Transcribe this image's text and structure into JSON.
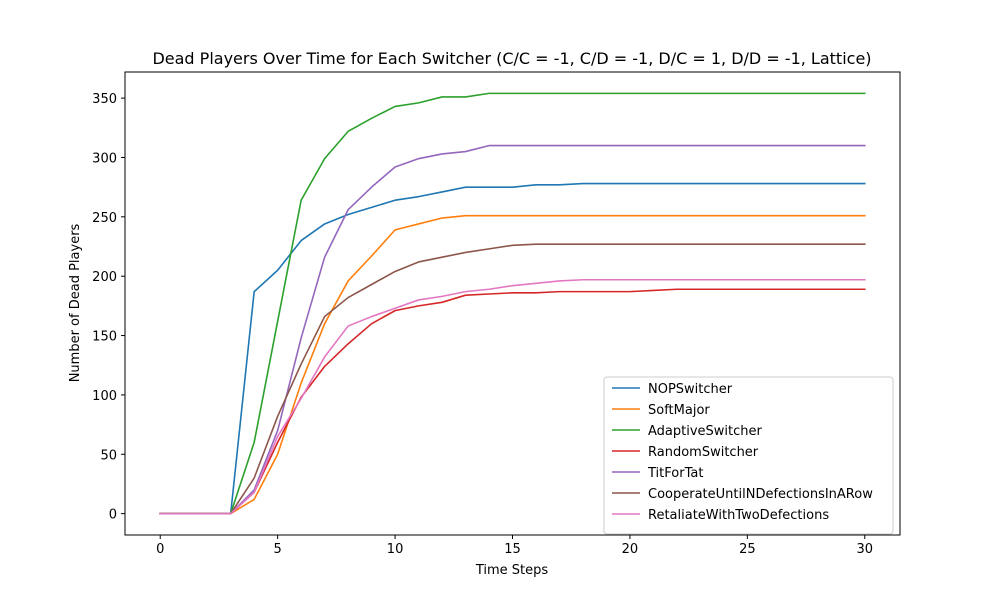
{
  "chart_data": {
    "type": "line",
    "title": "Dead Players Over Time for Each Switcher (C/C = -1, C/D = -1, D/C = 1, D/D = -1, Lattice)",
    "xlabel": "Time Steps",
    "ylabel": "Number of Dead Players",
    "xlim": [
      -1.5,
      31.5
    ],
    "ylim": [
      -18,
      372
    ],
    "xticks": [
      0,
      5,
      10,
      15,
      20,
      25,
      30
    ],
    "yticks": [
      0,
      50,
      100,
      150,
      200,
      250,
      300,
      350
    ],
    "grid": false,
    "legend_position": "lower-right",
    "x": [
      0,
      1,
      2,
      3,
      4,
      5,
      6,
      7,
      8,
      9,
      10,
      11,
      12,
      13,
      14,
      15,
      16,
      17,
      18,
      19,
      20,
      21,
      22,
      23,
      24,
      25,
      26,
      27,
      28,
      29,
      30
    ],
    "series": [
      {
        "name": "NOPSwitcher",
        "color": "#1f77b4",
        "values": [
          0,
          0,
          0,
          0,
          187,
          205,
          230,
          244,
          252,
          258,
          264,
          267,
          271,
          275,
          275,
          275,
          277,
          277,
          278,
          278,
          278,
          278,
          278,
          278,
          278,
          278,
          278,
          278,
          278,
          278,
          278
        ]
      },
      {
        "name": "SoftMajor",
        "color": "#ff7f0e",
        "values": [
          0,
          0,
          0,
          0,
          12,
          50,
          110,
          160,
          196,
          217,
          239,
          244,
          249,
          251,
          251,
          251,
          251,
          251,
          251,
          251,
          251,
          251,
          251,
          251,
          251,
          251,
          251,
          251,
          251,
          251,
          251
        ]
      },
      {
        "name": "AdaptiveSwitcher",
        "color": "#2ca02c",
        "values": [
          0,
          0,
          0,
          0,
          60,
          162,
          264,
          299,
          322,
          333,
          343,
          346,
          351,
          351,
          354,
          354,
          354,
          354,
          354,
          354,
          354,
          354,
          354,
          354,
          354,
          354,
          354,
          354,
          354,
          354,
          354
        ]
      },
      {
        "name": "RandomSwitcher",
        "color": "#d62728",
        "values": [
          0,
          0,
          0,
          0,
          18,
          60,
          98,
          124,
          143,
          160,
          171,
          175,
          178,
          184,
          185,
          186,
          186,
          187,
          187,
          187,
          187,
          188,
          189,
          189,
          189,
          189,
          189,
          189,
          189,
          189,
          189
        ]
      },
      {
        "name": "TitForTat",
        "color": "#9467bd",
        "values": [
          0,
          0,
          0,
          0,
          20,
          70,
          148,
          216,
          256,
          275,
          292,
          299,
          303,
          305,
          310,
          310,
          310,
          310,
          310,
          310,
          310,
          310,
          310,
          310,
          310,
          310,
          310,
          310,
          310,
          310,
          310
        ]
      },
      {
        "name": "CooperateUntilNDefectionsInARow",
        "color": "#8c564b",
        "values": [
          0,
          0,
          0,
          0,
          30,
          82,
          126,
          166,
          182,
          193,
          204,
          212,
          216,
          220,
          223,
          226,
          227,
          227,
          227,
          227,
          227,
          227,
          227,
          227,
          227,
          227,
          227,
          227,
          227,
          227,
          227
        ]
      },
      {
        "name": "RetaliateWithTwoDefections",
        "color": "#e377c2",
        "values": [
          0,
          0,
          0,
          0,
          18,
          65,
          97,
          132,
          158,
          166,
          173,
          180,
          183,
          187,
          189,
          192,
          194,
          196,
          197,
          197,
          197,
          197,
          197,
          197,
          197,
          197,
          197,
          197,
          197,
          197,
          197
        ]
      }
    ]
  }
}
